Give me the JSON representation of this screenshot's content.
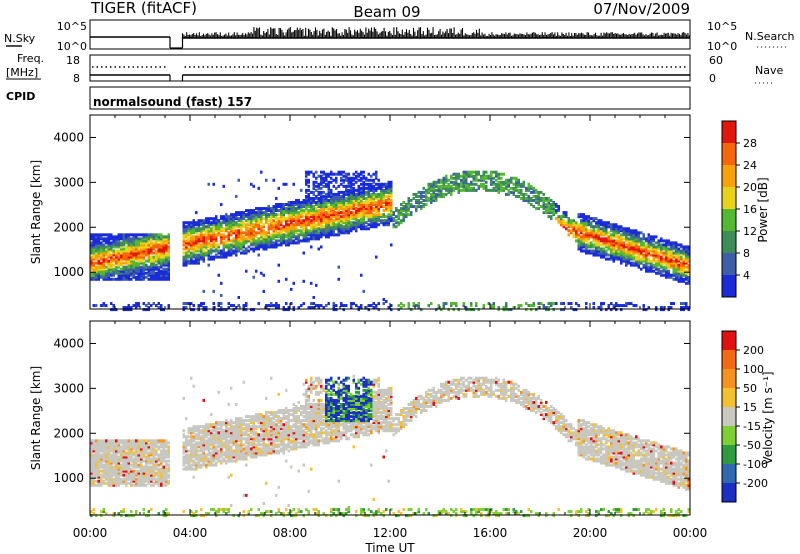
{
  "header": {
    "radar": "TIGER (fitACF)",
    "beam": "Beam 09",
    "date": "07/Nov/2009"
  },
  "nsky_panel": {
    "left_label": "N.Sky",
    "left_ticks": [
      "10^5",
      "10^0"
    ],
    "right_label": "N.Search",
    "right_ticks": [
      "10^5",
      "10^0"
    ]
  },
  "freq_panel": {
    "left_label_1": "Freq.",
    "left_label_2": "[MHz]",
    "left_ticks": [
      "18",
      "8"
    ],
    "right_label": "Nave",
    "right_ticks": [
      "60",
      "0"
    ]
  },
  "cpid_panel": {
    "label": "CPID",
    "program": "normalsound (fast) 157"
  },
  "chart_data": [
    {
      "type": "heatmap",
      "title": "",
      "ylabel": "Slant Range [km]",
      "xlabel": "",
      "ylim": [
        180,
        4500
      ],
      "yticks": [
        "1000",
        "2000",
        "3000",
        "4000"
      ],
      "x_tick_labels": [
        "00:00",
        "04:00",
        "08:00",
        "12:00",
        "16:00",
        "20:00",
        "00:00"
      ],
      "data_gap_hours": [
        3.2,
        3.7
      ],
      "colorbar": {
        "label": "Power [dB]",
        "tick_labels": [
          "4",
          "8",
          "12",
          "16",
          "20",
          "24",
          "28"
        ],
        "colors": [
          "#1a2bd8",
          "#3c5fa8",
          "#3f8c57",
          "#55b832",
          "#e8d21c",
          "#f6a20c",
          "#f5670a",
          "#e0170d"
        ]
      }
    },
    {
      "type": "heatmap",
      "title": "",
      "ylabel": "Slant Range [km]",
      "xlabel": "Time UT",
      "ylim": [
        180,
        4500
      ],
      "yticks": [
        "1000",
        "2000",
        "3000",
        "4000"
      ],
      "x_tick_labels": [
        "00:00",
        "04:00",
        "08:00",
        "12:00",
        "16:00",
        "20:00",
        "00:00"
      ],
      "data_gap_hours": [
        3.2,
        3.7
      ],
      "colorbar": {
        "label": "Velocity [m s⁻¹]",
        "tick_labels": [
          "200",
          "100",
          "50",
          "15",
          "-15",
          "-50",
          "-100",
          "-200"
        ],
        "colors": [
          "#1a30c0",
          "#2f6ab0",
          "#2f9a40",
          "#7ccf35",
          "#c8c8c0",
          "#f2c030",
          "#f59320",
          "#f26a12",
          "#e01010"
        ]
      }
    }
  ]
}
